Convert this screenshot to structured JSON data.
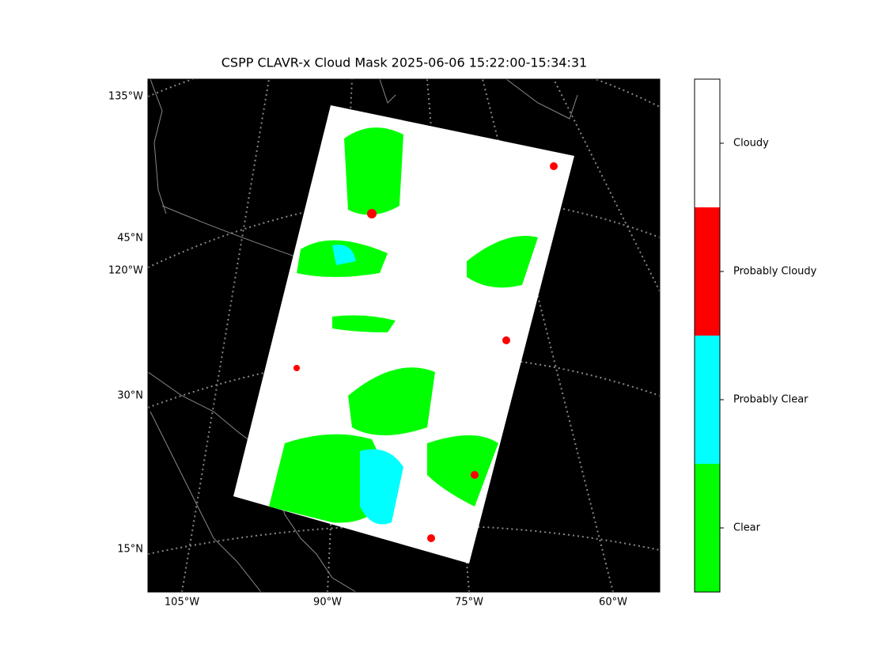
{
  "title": "CSPP CLAVR-x Cloud Mask 2025-06-06 15:22:00-15:34:31",
  "left_labels": [
    "135°W",
    "45°N",
    "120°W",
    "30°N",
    "15°N"
  ],
  "bottom_labels": [
    "105°W",
    "90°W",
    "75°W",
    "60°W"
  ],
  "colorbar": {
    "categories": [
      "Clear",
      "Probably Clear",
      "Probably Cloudy",
      "Cloudy"
    ],
    "colors": [
      "#00ff00",
      "#00ffff",
      "#ff0000",
      "#ffffff"
    ]
  }
}
